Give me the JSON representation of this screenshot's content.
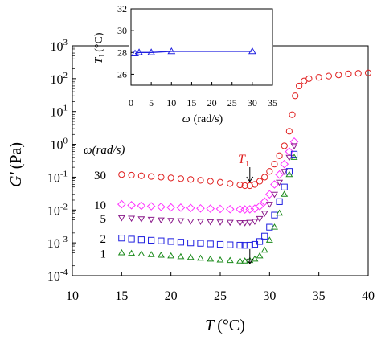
{
  "chart_data": [
    {
      "type": "scatter",
      "xlabel_symbol": "T",
      "xlabel_unit": "(°C)",
      "ylabel_symbol": "G'",
      "ylabel_unit": "(Pa)",
      "xlim": [
        10,
        40
      ],
      "ylim": [
        0.0001,
        1000
      ],
      "y_scale": "log",
      "x_ticks": [
        "10",
        "15",
        "20",
        "25",
        "30",
        "35",
        "40"
      ],
      "y_ticks": [
        {
          "base": "10",
          "exp": "3",
          "value": 1000
        },
        {
          "base": "10",
          "exp": "2",
          "value": 100
        },
        {
          "base": "10",
          "exp": "1",
          "value": 10
        },
        {
          "base": "10",
          "exp": "0",
          "value": 1
        },
        {
          "base": "10",
          "exp": "-1",
          "value": 0.1
        },
        {
          "base": "10",
          "exp": "-2",
          "value": 0.01
        },
        {
          "base": "10",
          "exp": "-3",
          "value": 0.001
        },
        {
          "base": "10",
          "exp": "-4",
          "value": 0.0001
        }
      ],
      "legend_title": "ω(rad/s)",
      "annotation": {
        "symbol": "T",
        "subscript": "1",
        "x": 28,
        "y": 0.05,
        "color": "#e02020"
      },
      "series": [
        {
          "name": "30",
          "marker": "circle",
          "color": "#e02020",
          "x": [
            15,
            16,
            17,
            18,
            19,
            20,
            21,
            22,
            23,
            24,
            25,
            26,
            27,
            27.5,
            28,
            28.5,
            29,
            29.5,
            30,
            30.5,
            31,
            31.5,
            32,
            32.3,
            32.6,
            33,
            33.5,
            34,
            35,
            36,
            37,
            38,
            39,
            40
          ],
          "y": [
            0.12,
            0.115,
            0.11,
            0.105,
            0.1,
            0.095,
            0.09,
            0.085,
            0.08,
            0.075,
            0.07,
            0.064,
            0.058,
            0.055,
            0.055,
            0.06,
            0.075,
            0.1,
            0.15,
            0.25,
            0.45,
            0.9,
            2.5,
            8,
            30,
            60,
            85,
            100,
            110,
            120,
            130,
            140,
            145,
            150
          ]
        },
        {
          "name": "10",
          "marker": "diamond",
          "color": "#ff33ff",
          "x": [
            15,
            16,
            17,
            18,
            19,
            20,
            21,
            22,
            23,
            24,
            25,
            26,
            27,
            27.5,
            28,
            28.5,
            29,
            29.5,
            30,
            30.5,
            31,
            31.5,
            32,
            32.5
          ],
          "y": [
            0.015,
            0.014,
            0.0135,
            0.013,
            0.0125,
            0.012,
            0.0118,
            0.0115,
            0.0112,
            0.011,
            0.0108,
            0.0106,
            0.0105,
            0.0104,
            0.0105,
            0.011,
            0.013,
            0.018,
            0.03,
            0.06,
            0.12,
            0.25,
            0.6,
            1.2
          ]
        },
        {
          "name": "5",
          "marker": "triangle-down",
          "color": "#8a1a8a",
          "x": [
            15,
            16,
            17,
            18,
            19,
            20,
            21,
            22,
            23,
            24,
            25,
            26,
            27,
            27.5,
            28,
            28.5,
            29,
            29.5,
            30,
            30.5,
            31,
            31.5,
            32,
            32.5
          ],
          "y": [
            0.0058,
            0.0056,
            0.0054,
            0.0052,
            0.005,
            0.0048,
            0.0047,
            0.0046,
            0.0045,
            0.0044,
            0.0043,
            0.0042,
            0.0041,
            0.0041,
            0.0042,
            0.0045,
            0.0055,
            0.008,
            0.015,
            0.03,
            0.07,
            0.15,
            0.4,
            0.9
          ]
        },
        {
          "name": "2",
          "marker": "square",
          "color": "#2020e0",
          "x": [
            15,
            16,
            17,
            18,
            19,
            20,
            21,
            22,
            23,
            24,
            25,
            26,
            27,
            27.5,
            28,
            28.5,
            29,
            29.5,
            30,
            30.5,
            31,
            31.5,
            32,
            32.5
          ],
          "y": [
            0.0014,
            0.0013,
            0.00125,
            0.0012,
            0.00115,
            0.0011,
            0.00105,
            0.001,
            0.00097,
            0.00093,
            0.0009,
            0.00087,
            0.00085,
            0.00084,
            0.00085,
            0.0009,
            0.0011,
            0.0016,
            0.003,
            0.007,
            0.018,
            0.05,
            0.15,
            0.5
          ]
        },
        {
          "name": "1",
          "marker": "triangle-up",
          "color": "#1a8a1a",
          "x": [
            15,
            16,
            17,
            18,
            19,
            20,
            21,
            22,
            23,
            24,
            25,
            26,
            27,
            27.5,
            28,
            28.5,
            29,
            29.5,
            30,
            30.5,
            31,
            31.5,
            32,
            32.5
          ],
          "y": [
            0.0005,
            0.00048,
            0.00046,
            0.00044,
            0.00042,
            0.0004,
            0.00038,
            0.00036,
            0.00034,
            0.00032,
            0.0003,
            0.00029,
            0.00028,
            0.00028,
            0.00029,
            0.00032,
            0.0004,
            0.0006,
            0.0012,
            0.003,
            0.008,
            0.03,
            0.12,
            0.4
          ]
        }
      ]
    },
    {
      "type": "line",
      "xlabel_symbol": "ω",
      "xlabel_unit": "(rad/s)",
      "ylabel_symbol": "T",
      "ylabel_subscript": "1",
      "ylabel_unit": "(°C)",
      "xlim": [
        0,
        35
      ],
      "ylim": [
        25,
        32
      ],
      "x_ticks": [
        "0",
        "5",
        "10",
        "15",
        "20",
        "25",
        "30",
        "35"
      ],
      "y_ticks": [
        "26",
        "28",
        "30",
        "32"
      ],
      "series": [
        {
          "marker": "triangle-up",
          "color": "#2020e0",
          "x": [
            1,
            2,
            5,
            10,
            30
          ],
          "y": [
            27.9,
            28,
            28,
            28.1,
            28.1
          ]
        }
      ]
    }
  ]
}
